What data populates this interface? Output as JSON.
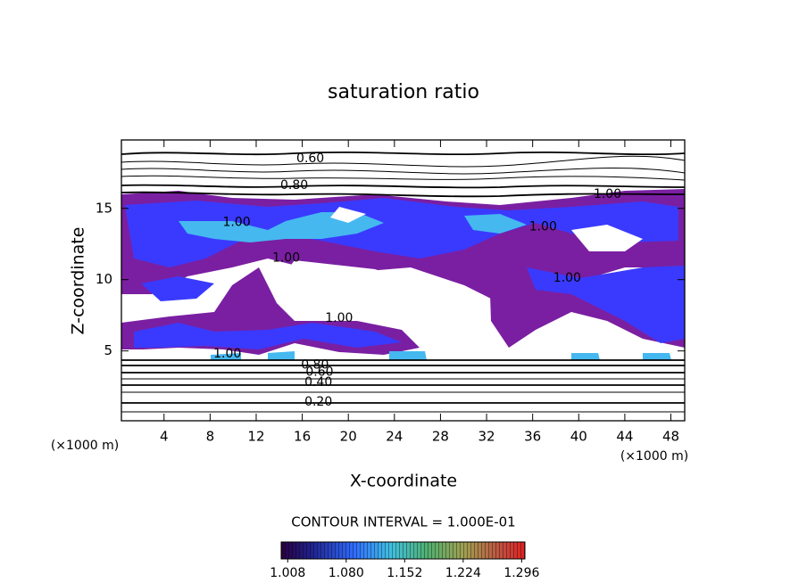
{
  "chart_data": {
    "type": "contour",
    "title": "saturation ratio",
    "x_label": "X-coordinate",
    "y_label": "Z-coordinate",
    "x_unit": "(×1000 m)",
    "y_unit": "(×1000 m)",
    "xlim": [
      0.3,
      49.2
    ],
    "xticks": [
      4,
      8,
      12,
      16,
      20,
      24,
      28,
      32,
      36,
      40,
      44,
      48
    ],
    "ylim": [
      0.1,
      19.8
    ],
    "yticks": [
      5,
      10,
      15
    ],
    "contour_labels": [
      {
        "text": "0.60",
        "x": 16.7,
        "y": 18.5
      },
      {
        "text": "0.80",
        "x": 15.3,
        "y": 16.6
      },
      {
        "text": "1.00",
        "x": 10.3,
        "y": 14.0
      },
      {
        "text": "1.00",
        "x": 14.6,
        "y": 11.5
      },
      {
        "text": "1.00",
        "x": 19.2,
        "y": 7.3
      },
      {
        "text": "1.00",
        "x": 36.9,
        "y": 13.7
      },
      {
        "text": "1.00",
        "x": 39.0,
        "y": 10.1
      },
      {
        "text": "1.00",
        "x": 9.5,
        "y": 4.8
      },
      {
        "text": "1.00",
        "x": 42.5,
        "y": 16.0
      },
      {
        "text": "0.80",
        "x": 17.1,
        "y": 4.0
      },
      {
        "text": "0.60",
        "x": 17.5,
        "y": 3.5
      },
      {
        "text": "0.40",
        "x": 17.4,
        "y": 2.8
      },
      {
        "text": "0.20",
        "x": 17.4,
        "y": 1.4
      }
    ],
    "contour_interval": "CONTOUR INTERVAL = 1.000E-01",
    "colorbar": {
      "clim": [
        1.0,
        1.3
      ],
      "ticks": [
        1.008,
        {
          "value": 1.08,
          "label": "1.080"
        },
        1.152,
        1.224,
        1.296
      ]
    }
  }
}
